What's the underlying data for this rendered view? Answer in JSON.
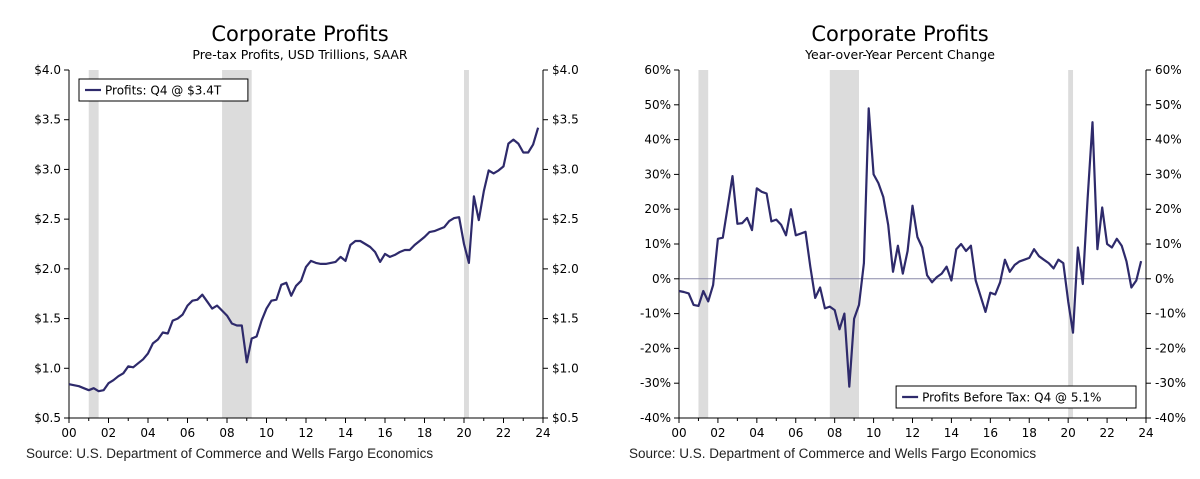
{
  "colors": {
    "line": "#2e2a6b",
    "recession": "#dcdcdc",
    "zero_line": "#8a8aa8",
    "axis": "#000000"
  },
  "source_text": "Source: U.S. Department of Commerce and Wells Fargo Economics",
  "chart_data": [
    {
      "type": "line",
      "title": "Corporate Profits",
      "subtitle": "Pre-tax Profits, USD Trillions, SAAR",
      "xlabel": "",
      "ylabel": "",
      "xlim": [
        2000,
        2024
      ],
      "ylim": [
        0.5,
        4.0
      ],
      "x_ticks": [
        2000,
        2002,
        2004,
        2006,
        2008,
        2010,
        2012,
        2014,
        2016,
        2018,
        2020,
        2022,
        2024
      ],
      "x_tick_labels": [
        "00",
        "02",
        "04",
        "06",
        "08",
        "10",
        "12",
        "14",
        "16",
        "18",
        "20",
        "22",
        "24"
      ],
      "y_ticks": [
        0.5,
        1.0,
        1.5,
        2.0,
        2.5,
        3.0,
        3.5,
        4.0
      ],
      "y_tick_labels": [
        "$0.5",
        "$1.0",
        "$1.5",
        "$2.0",
        "$2.5",
        "$3.0",
        "$3.5",
        "$4.0"
      ],
      "recessions": [
        [
          2001.0,
          2001.5
        ],
        [
          2007.75,
          2009.25
        ],
        [
          2020.0,
          2020.25
        ]
      ],
      "zero_line": false,
      "legend": {
        "position": "top-left",
        "entries": [
          "Profits: Q4 @ $3.4T"
        ]
      },
      "series": [
        {
          "name": "Profits: Q4 @ $3.4T",
          "x": [
            2000.0,
            2000.25,
            2000.5,
            2000.75,
            2001.0,
            2001.25,
            2001.5,
            2001.75,
            2002.0,
            2002.25,
            2002.5,
            2002.75,
            2003.0,
            2003.25,
            2003.5,
            2003.75,
            2004.0,
            2004.25,
            2004.5,
            2004.75,
            2005.0,
            2005.25,
            2005.5,
            2005.75,
            2006.0,
            2006.25,
            2006.5,
            2006.75,
            2007.0,
            2007.25,
            2007.5,
            2007.75,
            2008.0,
            2008.25,
            2008.5,
            2008.75,
            2009.0,
            2009.25,
            2009.5,
            2009.75,
            2010.0,
            2010.25,
            2010.5,
            2010.75,
            2011.0,
            2011.25,
            2011.5,
            2011.75,
            2012.0,
            2012.25,
            2012.5,
            2012.75,
            2013.0,
            2013.25,
            2013.5,
            2013.75,
            2014.0,
            2014.25,
            2014.5,
            2014.75,
            2015.0,
            2015.25,
            2015.5,
            2015.75,
            2016.0,
            2016.25,
            2016.5,
            2016.75,
            2017.0,
            2017.25,
            2017.5,
            2017.75,
            2018.0,
            2018.25,
            2018.5,
            2018.75,
            2019.0,
            2019.25,
            2019.5,
            2019.75,
            2020.0,
            2020.25,
            2020.5,
            2020.75,
            2021.0,
            2021.25,
            2021.5,
            2021.75,
            2022.0,
            2022.25,
            2022.5,
            2022.75,
            2023.0,
            2023.25,
            2023.5,
            2023.75
          ],
          "values": [
            0.84,
            0.83,
            0.82,
            0.8,
            0.78,
            0.8,
            0.77,
            0.78,
            0.85,
            0.88,
            0.92,
            0.95,
            1.02,
            1.01,
            1.05,
            1.09,
            1.15,
            1.25,
            1.29,
            1.36,
            1.35,
            1.48,
            1.5,
            1.54,
            1.63,
            1.68,
            1.69,
            1.74,
            1.67,
            1.6,
            1.63,
            1.58,
            1.53,
            1.45,
            1.43,
            1.43,
            1.06,
            1.3,
            1.32,
            1.48,
            1.6,
            1.68,
            1.69,
            1.84,
            1.86,
            1.73,
            1.83,
            1.88,
            2.02,
            2.08,
            2.06,
            2.05,
            2.05,
            2.06,
            2.07,
            2.12,
            2.08,
            2.24,
            2.28,
            2.28,
            2.25,
            2.22,
            2.17,
            2.07,
            2.15,
            2.12,
            2.14,
            2.17,
            2.19,
            2.19,
            2.24,
            2.28,
            2.32,
            2.37,
            2.38,
            2.4,
            2.42,
            2.48,
            2.51,
            2.52,
            2.25,
            2.06,
            2.73,
            2.49,
            2.78,
            2.99,
            2.96,
            2.99,
            3.03,
            3.26,
            3.3,
            3.26,
            3.17,
            3.17,
            3.25,
            3.42
          ]
        }
      ]
    },
    {
      "type": "line",
      "title": "Corporate Profits",
      "subtitle": "Year-over-Year Percent Change",
      "xlabel": "",
      "ylabel": "",
      "xlim": [
        2000,
        2024
      ],
      "ylim": [
        -40,
        60
      ],
      "x_ticks": [
        2000,
        2002,
        2004,
        2006,
        2008,
        2010,
        2012,
        2014,
        2016,
        2018,
        2020,
        2022,
        2024
      ],
      "x_tick_labels": [
        "00",
        "02",
        "04",
        "06",
        "08",
        "10",
        "12",
        "14",
        "16",
        "18",
        "20",
        "22",
        "24"
      ],
      "y_ticks": [
        -40,
        -30,
        -20,
        -10,
        0,
        10,
        20,
        30,
        40,
        50,
        60
      ],
      "y_tick_labels": [
        "-40%",
        "-30%",
        "-20%",
        "-10%",
        "0%",
        "10%",
        "20%",
        "30%",
        "40%",
        "50%",
        "60%"
      ],
      "recessions": [
        [
          2001.0,
          2001.5
        ],
        [
          2007.75,
          2009.25
        ],
        [
          2020.0,
          2020.25
        ]
      ],
      "zero_line": true,
      "legend": {
        "position": "bottom-right",
        "entries": [
          "Profits Before Tax: Q4 @ 5.1%"
        ]
      },
      "series": [
        {
          "name": "Profits Before Tax: Q4 @ 5.1%",
          "x": [
            2000.0,
            2000.25,
            2000.5,
            2000.75,
            2001.0,
            2001.25,
            2001.5,
            2001.75,
            2002.0,
            2002.25,
            2002.5,
            2002.75,
            2003.0,
            2003.25,
            2003.5,
            2003.75,
            2004.0,
            2004.25,
            2004.5,
            2004.75,
            2005.0,
            2005.25,
            2005.5,
            2005.75,
            2006.0,
            2006.25,
            2006.5,
            2006.75,
            2007.0,
            2007.25,
            2007.5,
            2007.75,
            2008.0,
            2008.25,
            2008.5,
            2008.75,
            2009.0,
            2009.25,
            2009.5,
            2009.75,
            2010.0,
            2010.25,
            2010.5,
            2010.75,
            2011.0,
            2011.25,
            2011.5,
            2011.75,
            2012.0,
            2012.25,
            2012.5,
            2012.75,
            2013.0,
            2013.25,
            2013.5,
            2013.75,
            2014.0,
            2014.25,
            2014.5,
            2014.75,
            2015.0,
            2015.25,
            2015.5,
            2015.75,
            2016.0,
            2016.25,
            2016.5,
            2016.75,
            2017.0,
            2017.25,
            2017.5,
            2017.75,
            2018.0,
            2018.25,
            2018.5,
            2018.75,
            2019.0,
            2019.25,
            2019.5,
            2019.75,
            2020.0,
            2020.25,
            2020.5,
            2020.75,
            2021.0,
            2021.25,
            2021.5,
            2021.75,
            2022.0,
            2022.25,
            2022.5,
            2022.75,
            2023.0,
            2023.25,
            2023.5,
            2023.75
          ],
          "values": [
            -3.5,
            -3.8,
            -4.2,
            -7.5,
            -7.8,
            -3.5,
            -6.5,
            -1.8,
            11.5,
            11.8,
            20.5,
            29.5,
            15.8,
            16.0,
            17.5,
            14.0,
            26.0,
            25.0,
            24.5,
            16.5,
            17.0,
            15.5,
            12.5,
            20.0,
            12.5,
            13.0,
            13.5,
            3.5,
            -5.5,
            -2.5,
            -8.5,
            -8.0,
            -9.0,
            -14.5,
            -10.0,
            -31.0,
            -11.5,
            -7.5,
            4.5,
            49.0,
            30.0,
            27.5,
            23.5,
            15.5,
            2.0,
            9.5,
            1.5,
            8.0,
            21.0,
            12.0,
            9.0,
            1.0,
            -1.0,
            0.5,
            1.5,
            3.5,
            -0.5,
            8.5,
            10.0,
            8.0,
            9.5,
            -0.5,
            -5.0,
            -9.5,
            -4.0,
            -4.5,
            -1.0,
            5.5,
            2.0,
            4.0,
            5.0,
            5.5,
            6.0,
            8.5,
            6.5,
            5.5,
            4.5,
            3.0,
            5.5,
            4.5,
            -6.5,
            -15.5,
            9.0,
            -1.5,
            23.0,
            45.0,
            8.5,
            20.5,
            10.0,
            9.0,
            11.5,
            9.5,
            5.0,
            -2.5,
            -0.5,
            5.1
          ]
        }
      ]
    }
  ]
}
